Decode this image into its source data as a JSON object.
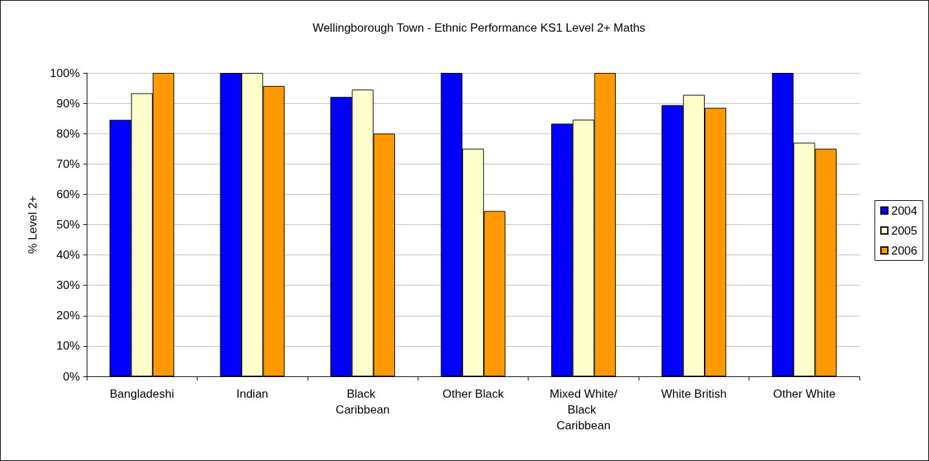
{
  "chart_data": {
    "type": "bar",
    "title": "Wellingborough Town - Ethnic Performance KS1 Level 2+ Maths",
    "ylabel": "% Level 2+",
    "categories": [
      "Bangladeshi",
      "Indian",
      "Black Caribbean",
      "Other Black",
      "Mixed White/Black Caribbean",
      "White British",
      "Other White"
    ],
    "series": [
      {
        "name": "2004",
        "color": "#0000ff",
        "values": [
          84.5,
          100,
          92.1,
          100,
          83.3,
          89.4,
          100
        ]
      },
      {
        "name": "2005",
        "color": "#ffffcc",
        "values": [
          93.3,
          100,
          94.5,
          75,
          84.6,
          92.8,
          77
        ]
      },
      {
        "name": "2006",
        "color": "#ff9900",
        "values": [
          100,
          95.7,
          80,
          54.5,
          100,
          88.5,
          75
        ]
      }
    ],
    "ylim": [
      0,
      100
    ],
    "yticks": [
      {
        "value": 0,
        "label": "0%"
      },
      {
        "value": 10,
        "label": "10%"
      },
      {
        "value": 20,
        "label": "20%"
      },
      {
        "value": 30,
        "label": "30%"
      },
      {
        "value": 40,
        "label": "40%"
      },
      {
        "value": 50,
        "label": "50%"
      },
      {
        "value": 60,
        "label": "60%"
      },
      {
        "value": 70,
        "label": "70%"
      },
      {
        "value": 80,
        "label": "80%"
      },
      {
        "value": 90,
        "label": "90%"
      },
      {
        "value": 100,
        "label": "100%"
      }
    ],
    "grid": "y",
    "legend": "right"
  }
}
